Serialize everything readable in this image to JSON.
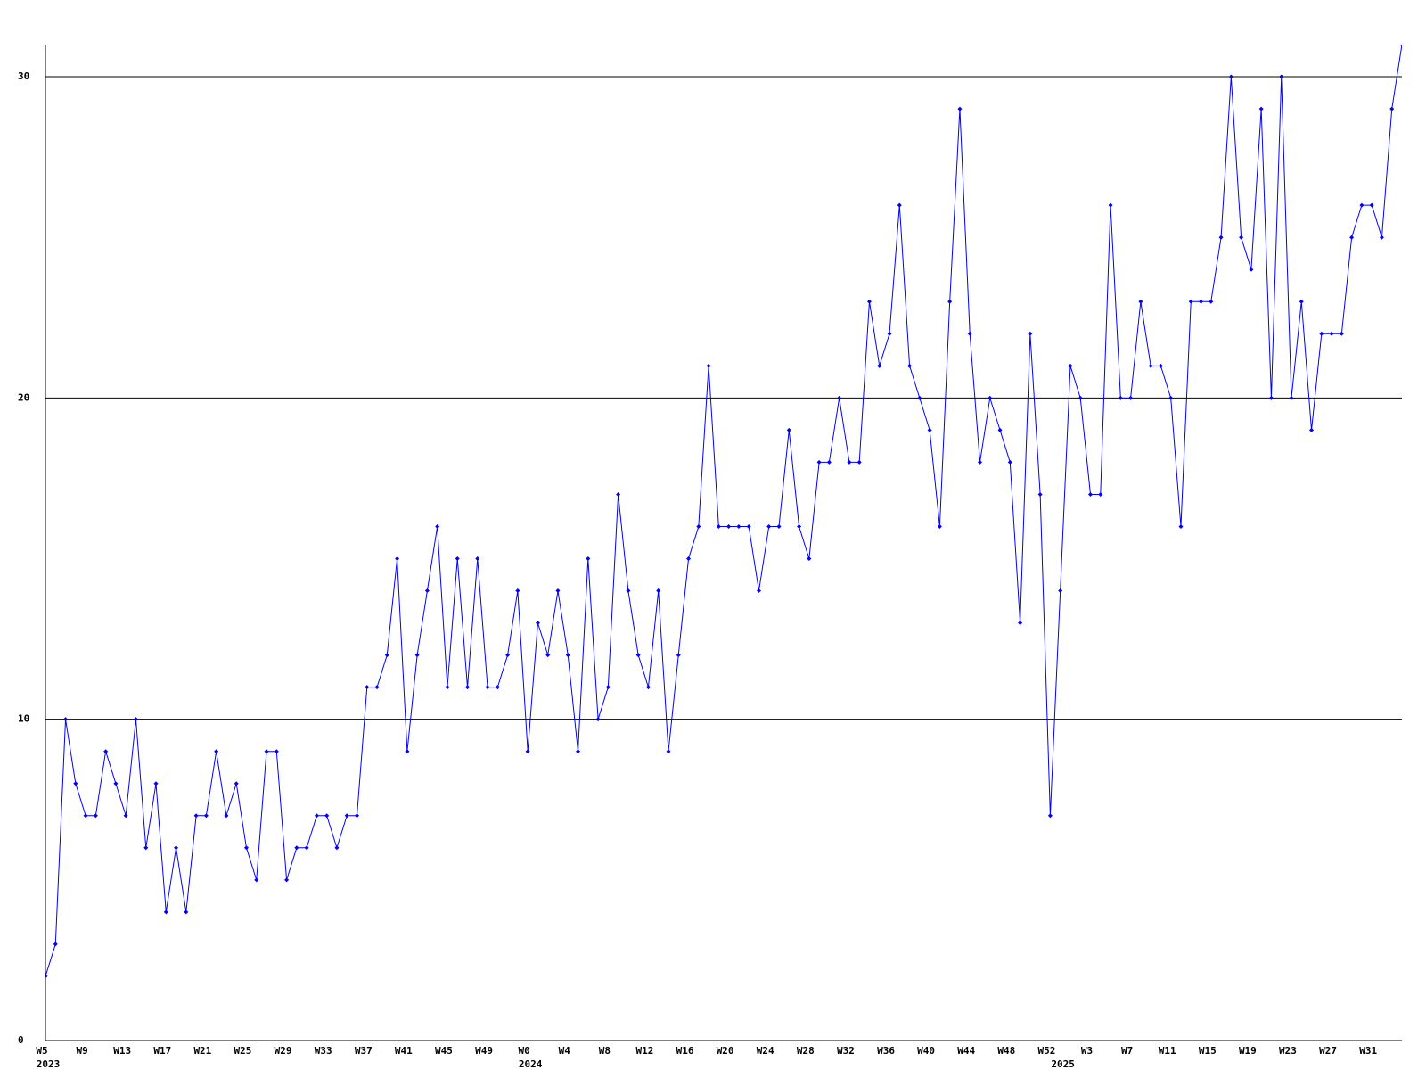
{
  "chart_data": {
    "type": "line",
    "categories": [
      "W5",
      null,
      null,
      null,
      "W9",
      null,
      null,
      null,
      "W13",
      null,
      null,
      null,
      "W17",
      null,
      null,
      null,
      "W21",
      null,
      null,
      null,
      "W25",
      null,
      null,
      null,
      "W29",
      null,
      null,
      null,
      "W33",
      null,
      null,
      null,
      "W37",
      null,
      null,
      null,
      "W41",
      null,
      null,
      null,
      "W45",
      null,
      null,
      null,
      "W49",
      null,
      null,
      null,
      "W0",
      null,
      null,
      null,
      "W4",
      null,
      null,
      null,
      "W8",
      null,
      null,
      null,
      "W12",
      null,
      null,
      null,
      "W16",
      null,
      null,
      null,
      "W20",
      null,
      null,
      null,
      "W24",
      null,
      null,
      null,
      "W28",
      null,
      null,
      null,
      "W32",
      null,
      null,
      null,
      "W36",
      null,
      null,
      null,
      "W40",
      null,
      null,
      null,
      "W44",
      null,
      null,
      null,
      "W48",
      null,
      null,
      null,
      "W52",
      null,
      null,
      null,
      "W3",
      null,
      null,
      null,
      "W7",
      null,
      null,
      null,
      "W11",
      null,
      null,
      null,
      "W15",
      null,
      null,
      null,
      "W19",
      null,
      null,
      null,
      "W23",
      null,
      null,
      null,
      "W27",
      null,
      null,
      null,
      "W31",
      null,
      null,
      null
    ],
    "years": [
      "2023",
      null,
      null,
      null,
      null,
      null,
      null,
      null,
      null,
      null,
      null,
      null,
      null,
      null,
      null,
      null,
      null,
      null,
      null,
      null,
      null,
      null,
      null,
      null,
      null,
      null,
      null,
      null,
      null,
      null,
      null,
      null,
      null,
      null,
      null,
      null,
      null,
      null,
      null,
      null,
      null,
      null,
      null,
      null,
      null,
      null,
      null,
      null,
      "2024",
      null,
      null,
      null,
      null,
      null,
      null,
      null,
      null,
      null,
      null,
      null,
      null,
      null,
      null,
      null,
      null,
      null,
      null,
      null,
      null,
      null,
      null,
      null,
      null,
      null,
      null,
      null,
      null,
      null,
      null,
      null,
      null,
      null,
      null,
      null,
      null,
      null,
      null,
      null,
      null,
      null,
      null,
      null,
      null,
      null,
      null,
      null,
      null,
      null,
      null,
      null,
      null,
      "2025",
      null,
      null,
      null,
      null,
      null,
      null,
      null,
      null,
      null,
      null,
      null,
      null,
      null,
      null,
      null,
      null,
      null,
      null,
      null,
      null,
      null,
      null,
      null,
      null,
      null,
      null,
      null,
      null,
      null,
      null,
      null,
      null,
      null,
      null
    ],
    "series": [
      {
        "color": "#0000ff",
        "values": [
          2,
          3,
          10,
          8,
          7,
          7,
          9,
          8,
          7,
          10,
          6,
          8,
          4,
          6,
          4,
          7,
          7,
          9,
          7,
          8,
          6,
          5,
          9,
          9,
          5,
          6,
          6,
          7,
          7,
          6,
          7,
          7,
          11,
          11,
          12,
          15,
          9,
          12,
          14,
          16,
          11,
          15,
          11,
          15,
          11,
          11,
          12,
          14,
          9,
          13,
          12,
          14,
          12,
          9,
          15,
          10,
          11,
          17,
          14,
          12,
          11,
          14,
          9,
          12,
          15,
          16,
          21,
          16,
          16,
          16,
          16,
          14,
          16,
          16,
          19,
          16,
          15,
          18,
          18,
          20,
          18,
          18,
          23,
          21,
          22,
          26,
          21,
          20,
          19,
          16,
          23,
          29,
          22,
          18,
          20,
          19,
          18,
          13,
          22,
          17,
          7,
          14,
          21,
          20,
          17,
          17,
          26,
          20,
          20,
          23,
          21,
          21,
          20,
          16,
          23,
          23,
          23,
          25,
          30,
          25,
          24,
          29,
          20,
          30,
          20,
          23,
          19,
          22,
          22,
          22,
          25,
          26,
          26,
          25,
          29,
          31
        ]
      }
    ],
    "ylim": [
      0,
      31
    ],
    "yticks": [
      0,
      10,
      20,
      30
    ],
    "grid": true
  }
}
